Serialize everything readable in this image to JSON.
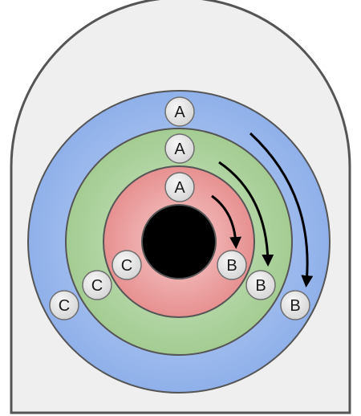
{
  "colors": {
    "housing_fill": "#efefef",
    "housing_stroke": "#555555",
    "outer_ring": "#97b6ec",
    "middle_ring": "#a9cf98",
    "inner_ring": "#ea9a9a",
    "center_hole": "#000000",
    "marker_fill": "#e4e4e4",
    "marker_stroke": "#6e6e6e",
    "arrow": "#000000"
  },
  "rings": [
    {
      "name": "outer-ring",
      "markers": {
        "top": "A",
        "right": "B",
        "left": "C"
      }
    },
    {
      "name": "middle-ring",
      "markers": {
        "top": "A",
        "right": "B",
        "left": "C"
      }
    },
    {
      "name": "inner-ring",
      "markers": {
        "top": "A",
        "right": "B",
        "left": "C"
      }
    }
  ],
  "arrows": [
    {
      "name": "outer-rotation-arrow",
      "direction": "clockwise",
      "from": "A",
      "to": "B"
    },
    {
      "name": "middle-rotation-arrow",
      "direction": "clockwise",
      "from": "A",
      "to": "B"
    },
    {
      "name": "inner-rotation-arrow",
      "direction": "clockwise",
      "from": "A",
      "to": "B"
    }
  ]
}
